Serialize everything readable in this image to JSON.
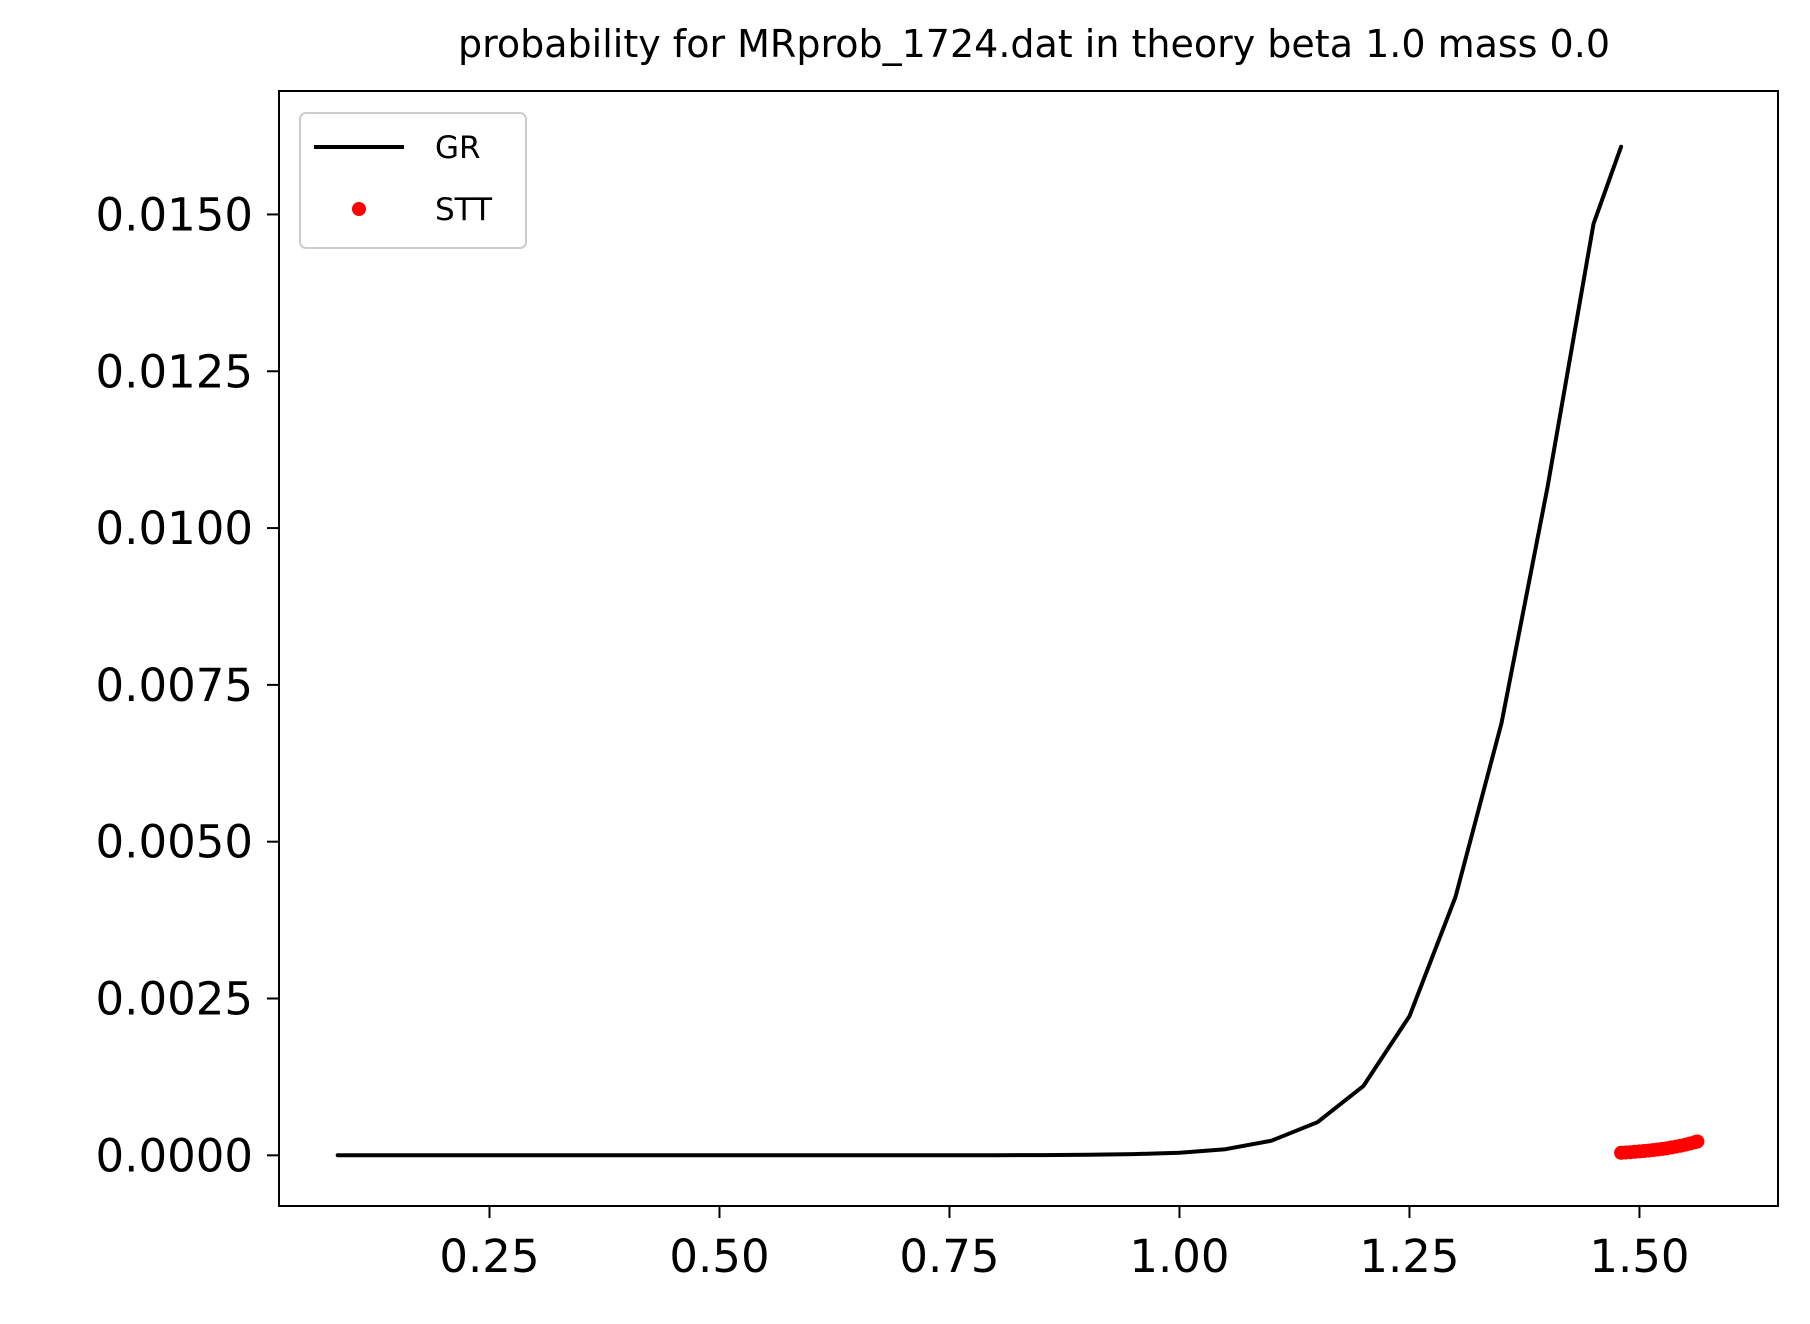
{
  "chart_data": {
    "type": "line",
    "title": "probability for MRprob_1724.dat in theory beta 1.0 mass 0.0",
    "xlabel": "",
    "ylabel": "",
    "xlim": [
      0.0212,
      1.6506
    ],
    "ylim": [
      -0.000808,
      0.016968
    ],
    "x_ticks": [
      0.25,
      0.5,
      0.75,
      1.0,
      1.25,
      1.5
    ],
    "x_tick_labels": [
      "0.25",
      "0.50",
      "0.75",
      "1.00",
      "1.25",
      "1.50"
    ],
    "y_ticks": [
      0.0,
      0.0025,
      0.005,
      0.0075,
      0.01,
      0.0125,
      0.015
    ],
    "y_tick_labels": [
      "0.0000",
      "0.0025",
      "0.0050",
      "0.0075",
      "0.0100",
      "0.0125",
      "0.0150"
    ],
    "grid": false,
    "legend_position": "top-left",
    "series": [
      {
        "name": "GR",
        "style": "line",
        "color": "#000000",
        "x": [
          0.085,
          0.2,
          0.3,
          0.4,
          0.5,
          0.6,
          0.7,
          0.8,
          0.85,
          0.9,
          0.95,
          1.0,
          1.05,
          1.1,
          1.15,
          1.2,
          1.25,
          1.3,
          1.35,
          1.4,
          1.45,
          1.48
        ],
        "y": [
          0.0,
          0.0,
          0.0,
          0.0,
          0.0,
          0.0,
          0.0,
          2e-06,
          4e-06,
          8e-06,
          2e-05,
          4e-05,
          9.8e-05,
          0.000233,
          0.000528,
          0.001106,
          0.00222,
          0.00412,
          0.00689,
          0.01065,
          0.01485,
          0.01608
        ]
      },
      {
        "name": "STT",
        "style": "scatter",
        "color": "#ff0000",
        "x": [
          1.48,
          1.485,
          1.49,
          1.495,
          1.5,
          1.505,
          1.51,
          1.515,
          1.52,
          1.525,
          1.53,
          1.535,
          1.54,
          1.545,
          1.55,
          1.555,
          1.56,
          1.563
        ],
        "y": [
          4e-05,
          4.5e-05,
          5e-05,
          5.6e-05,
          6.2e-05,
          6.9e-05,
          7.6e-05,
          8.4e-05,
          9.3e-05,
          0.000103,
          0.000114,
          0.000126,
          0.000139,
          0.000154,
          0.00017,
          0.000188,
          0.000208,
          0.00022
        ]
      }
    ]
  },
  "colors": {
    "gr_line": "#000000",
    "stt_points": "#ff0000",
    "axes": "#000000",
    "legend_border": "#cccccc"
  }
}
